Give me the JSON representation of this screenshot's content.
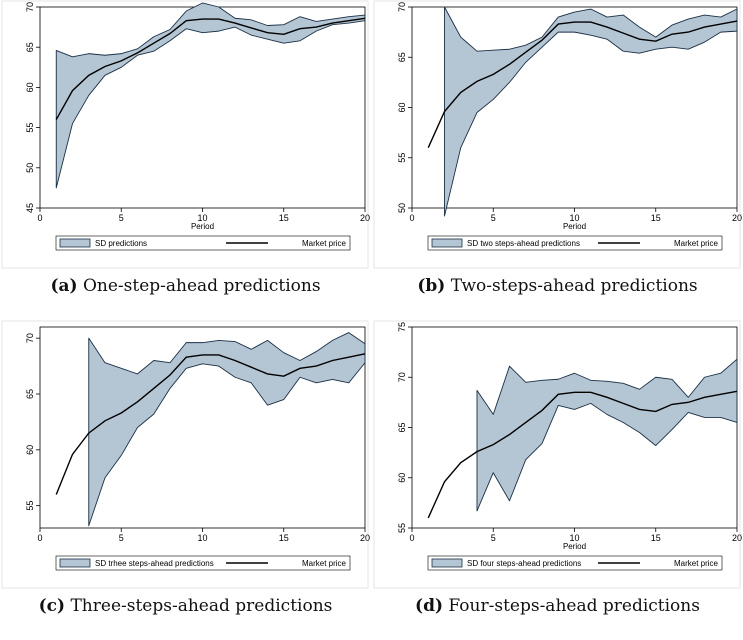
{
  "colors": {
    "band_fill": "#b4c5d4",
    "band_stroke": "#1b2f45",
    "line": "#000000",
    "frame": "#e6e6e6"
  },
  "captions": [
    {
      "tag": "(a)",
      "text": "One-step-ahead predictions"
    },
    {
      "tag": "(b)",
      "text": "Two-steps-ahead predictions"
    },
    {
      "tag": "(c)",
      "text": "Three-steps-ahead predictions"
    },
    {
      "tag": "(d)",
      "text": "Four-steps-ahead predictions"
    }
  ],
  "chart_data": [
    {
      "type": "area",
      "xlabel": "Period",
      "xlim": [
        0,
        20
      ],
      "ylim": [
        45,
        70
      ],
      "xticks": [
        0,
        5,
        10,
        15,
        20
      ],
      "yticks": [
        45,
        50,
        55,
        60,
        65,
        70
      ],
      "legend": [
        "SD predictions",
        "Market price"
      ],
      "legend_position": "bottom",
      "x": [
        1,
        2,
        3,
        4,
        5,
        6,
        7,
        8,
        9,
        10,
        11,
        12,
        13,
        14,
        15,
        16,
        17,
        18,
        19,
        20
      ],
      "series": [
        {
          "name": "Market price",
          "kind": "line",
          "values": [
            56.0,
            59.6,
            61.5,
            62.6,
            63.3,
            64.3,
            65.5,
            66.7,
            68.3,
            68.5,
            68.5,
            68.0,
            67.4,
            66.8,
            66.6,
            67.3,
            67.5,
            68.0,
            68.3,
            68.6
          ]
        },
        {
          "name": "SD predictions",
          "kind": "band",
          "lower": [
            47.5,
            55.5,
            59.0,
            61.5,
            62.5,
            64.0,
            64.5,
            65.8,
            67.3,
            66.8,
            67.0,
            67.5,
            66.5,
            66.0,
            65.5,
            65.8,
            67.0,
            67.8,
            68.0,
            68.3
          ],
          "upper": [
            64.6,
            63.8,
            64.2,
            64.0,
            64.2,
            64.8,
            66.3,
            67.2,
            69.5,
            70.5,
            70.0,
            68.6,
            68.4,
            67.7,
            67.8,
            68.8,
            68.2,
            68.5,
            68.8,
            69.0
          ]
        }
      ]
    },
    {
      "type": "area",
      "xlabel": "Period",
      "xlim": [
        0,
        20
      ],
      "ylim": [
        50,
        70
      ],
      "xticks": [
        0,
        5,
        10,
        15,
        20
      ],
      "yticks": [
        50,
        55,
        60,
        65,
        70
      ],
      "legend": [
        "SD two steps-ahead predictions",
        "Market price"
      ],
      "legend_position": "bottom",
      "x": [
        1,
        2,
        3,
        4,
        5,
        6,
        7,
        8,
        9,
        10,
        11,
        12,
        13,
        14,
        15,
        16,
        17,
        18,
        19,
        20
      ],
      "series": [
        {
          "name": "Market price",
          "kind": "line",
          "values": [
            56.0,
            59.6,
            61.5,
            62.6,
            63.3,
            64.3,
            65.5,
            66.7,
            68.3,
            68.5,
            68.5,
            68.0,
            67.4,
            66.8,
            66.6,
            67.3,
            67.5,
            68.0,
            68.3,
            68.6
          ]
        },
        {
          "name": "SD two steps-ahead predictions",
          "kind": "band",
          "start_x": 2,
          "lower": [
            49.2,
            56.0,
            59.5,
            60.8,
            62.5,
            64.5,
            66.0,
            67.5,
            67.5,
            67.2,
            66.8,
            65.6,
            65.4,
            65.8,
            66.0,
            65.8,
            66.5,
            67.5,
            67.6
          ],
          "upper": [
            70.0,
            67.0,
            65.6,
            65.7,
            65.8,
            66.2,
            67.0,
            69.0,
            69.5,
            69.8,
            69.0,
            69.2,
            68.0,
            67.0,
            68.2,
            68.8,
            69.2,
            69.0,
            69.8
          ]
        }
      ]
    },
    {
      "type": "area",
      "xlabel": "",
      "xlim": [
        0,
        20
      ],
      "ylim": [
        53,
        71
      ],
      "xticks": [
        0,
        5,
        10,
        15,
        20
      ],
      "yticks": [
        55,
        60,
        65,
        70
      ],
      "legend": [
        "SD trhee steps-ahead predictions",
        "Market price"
      ],
      "legend_position": "bottom",
      "x": [
        1,
        2,
        3,
        4,
        5,
        6,
        7,
        8,
        9,
        10,
        11,
        12,
        13,
        14,
        15,
        16,
        17,
        18,
        19,
        20
      ],
      "series": [
        {
          "name": "Market price",
          "kind": "line",
          "values": [
            56.0,
            59.6,
            61.5,
            62.6,
            63.3,
            64.3,
            65.5,
            66.7,
            68.3,
            68.5,
            68.5,
            68.0,
            67.4,
            66.8,
            66.6,
            67.3,
            67.5,
            68.0,
            68.3,
            68.6
          ]
        },
        {
          "name": "SD trhee steps-ahead predictions",
          "kind": "band",
          "start_x": 3,
          "lower": [
            53.2,
            57.5,
            59.5,
            62.0,
            63.2,
            65.5,
            67.3,
            67.7,
            67.5,
            66.5,
            66.0,
            64.0,
            64.5,
            66.5,
            66.0,
            66.3,
            66.0,
            67.8
          ],
          "upper": [
            70.0,
            67.8,
            67.3,
            66.8,
            68.0,
            67.8,
            69.6,
            69.6,
            69.8,
            69.7,
            69.0,
            69.8,
            68.7,
            68.0,
            68.8,
            69.8,
            70.5,
            69.5
          ]
        }
      ]
    },
    {
      "type": "area",
      "xlabel": "Period",
      "xlim": [
        0,
        20
      ],
      "ylim": [
        55,
        75
      ],
      "xticks": [
        0,
        5,
        10,
        15,
        20
      ],
      "yticks": [
        55,
        60,
        65,
        70,
        75
      ],
      "legend": [
        "SD four steps-ahead predictions",
        "Market price"
      ],
      "legend_position": "bottom",
      "x": [
        1,
        2,
        3,
        4,
        5,
        6,
        7,
        8,
        9,
        10,
        11,
        12,
        13,
        14,
        15,
        16,
        17,
        18,
        19,
        20
      ],
      "series": [
        {
          "name": "Market price",
          "kind": "line",
          "values": [
            56.0,
            59.6,
            61.5,
            62.6,
            63.3,
            64.3,
            65.5,
            66.7,
            68.3,
            68.5,
            68.5,
            68.0,
            67.4,
            66.8,
            66.6,
            67.3,
            67.5,
            68.0,
            68.3,
            68.6
          ]
        },
        {
          "name": "SD four steps-ahead predictions",
          "kind": "band",
          "start_x": 4,
          "lower": [
            56.7,
            60.5,
            57.7,
            61.8,
            63.4,
            67.2,
            66.8,
            67.4,
            66.3,
            65.5,
            64.5,
            63.2,
            64.8,
            66.5,
            66.0,
            66.0,
            65.5
          ],
          "upper": [
            68.7,
            66.3,
            71.1,
            69.5,
            69.7,
            69.8,
            70.4,
            69.7,
            69.6,
            69.4,
            68.8,
            70.0,
            69.8,
            68.0,
            70.0,
            70.4,
            71.8
          ]
        }
      ]
    }
  ]
}
